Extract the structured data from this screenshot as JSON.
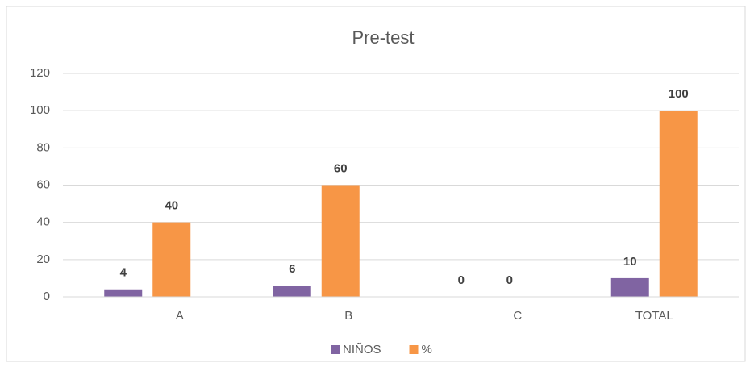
{
  "chart_data": {
    "type": "bar",
    "title": "Pre-test",
    "categories": [
      "A",
      "B",
      "C",
      "TOTAL"
    ],
    "series": [
      {
        "name": "NIÑOS",
        "color": "#8064a2",
        "values": [
          4,
          6,
          0,
          10
        ]
      },
      {
        "name": "%",
        "color": "#f79646",
        "values": [
          40,
          60,
          0,
          100
        ]
      }
    ],
    "ylim": [
      0,
      120
    ],
    "yticks": [
      0,
      20,
      40,
      60,
      80,
      100,
      120
    ],
    "grid": true,
    "legend": "bottom"
  }
}
